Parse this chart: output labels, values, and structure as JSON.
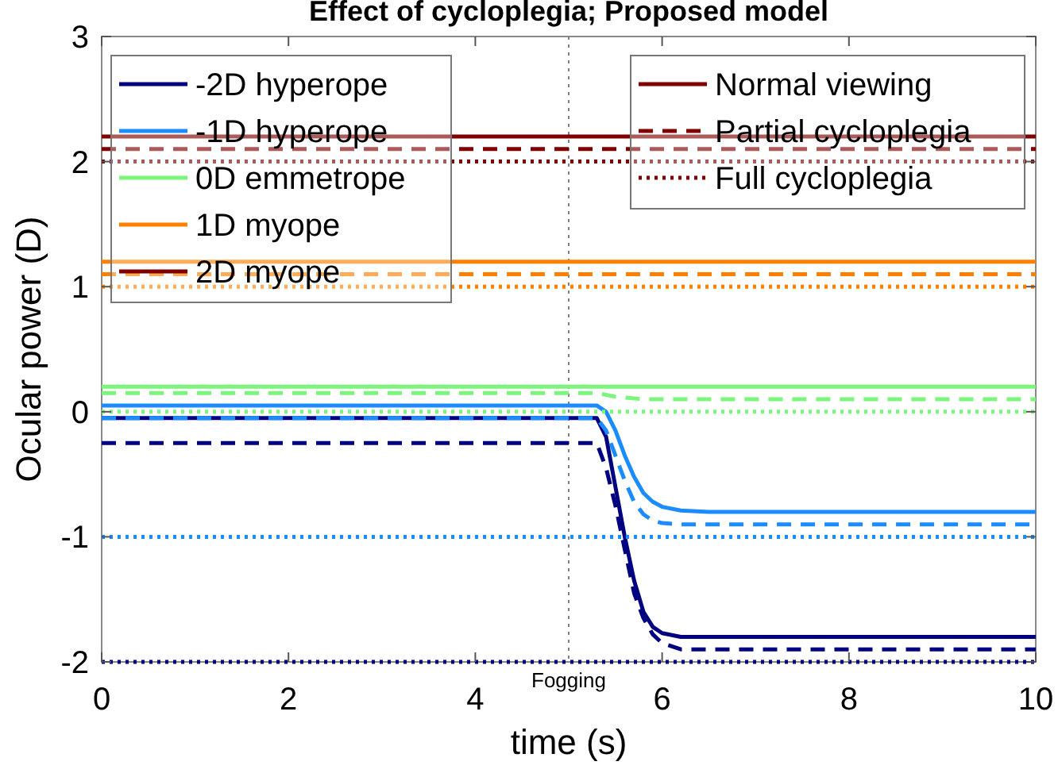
{
  "chart_data": {
    "type": "line",
    "title": "Effect of cycloplegia; Proposed model",
    "xlabel": "time (s)",
    "ylabel": "Ocular power (D)",
    "xlim": [
      0,
      10
    ],
    "xticks": [
      0,
      2,
      4,
      6,
      8,
      10
    ],
    "ylim": [
      -2,
      3
    ],
    "yticks": [
      -2,
      -1,
      0,
      1,
      2,
      3
    ],
    "grid": false,
    "legend": "top",
    "marker": "none",
    "annotations": [
      "Normal viewing"
    ],
    "ref_lines": [
      {
        "axis": "x",
        "value": 5,
        "label": "Fogging",
        "color": "#808080",
        "line_style": "dotted"
      }
    ],
    "series": [
      {
        "name": "-2D hyperope",
        "color": "#000080",
        "line_style": "solid",
        "x": [
          0,
          5.3,
          5.4,
          5.5,
          5.6,
          5.7,
          5.8,
          5.9,
          6.0,
          6.2,
          6.5,
          10
        ],
        "values": [
          -0.05,
          -0.05,
          -0.2,
          -0.6,
          -1.0,
          -1.35,
          -1.6,
          -1.72,
          -1.77,
          -1.8,
          -1.8,
          -1.8
        ]
      },
      {
        "color": "#000080",
        "line_style": "dashed",
        "x": [
          0,
          5.3,
          5.4,
          5.5,
          5.6,
          5.7,
          5.8,
          5.9,
          6.0,
          6.2,
          6.5,
          10
        ],
        "values": [
          -0.25,
          -0.25,
          -0.45,
          -0.75,
          -1.1,
          -1.45,
          -1.65,
          -1.78,
          -1.85,
          -1.9,
          -1.9,
          -1.9
        ]
      },
      {
        "color": "#000080",
        "line_style": "dotted",
        "x": [
          0,
          10
        ],
        "values": [
          -2,
          -2
        ]
      },
      {
        "name": "-1D hyperope",
        "color": "#1a8cff",
        "line_style": "solid",
        "x": [
          0,
          5.3,
          5.4,
          5.5,
          5.6,
          5.7,
          5.8,
          5.9,
          6.0,
          6.2,
          6.5,
          10
        ],
        "values": [
          0.05,
          0.05,
          0,
          -0.15,
          -0.35,
          -0.52,
          -0.65,
          -0.72,
          -0.76,
          -0.79,
          -0.8,
          -0.8
        ]
      },
      {
        "color": "#1a8cff",
        "line_style": "dashed",
        "x": [
          0,
          5.3,
          5.4,
          5.5,
          5.6,
          5.7,
          5.8,
          5.9,
          6.0,
          6.2,
          6.5,
          10
        ],
        "values": [
          -0.05,
          -0.05,
          -0.15,
          -0.35,
          -0.55,
          -0.72,
          -0.82,
          -0.87,
          -0.89,
          -0.9,
          -0.9,
          -0.9
        ]
      },
      {
        "color": "#1a8cff",
        "line_style": "dotted",
        "x": [
          0,
          10
        ],
        "values": [
          -1,
          -1
        ]
      },
      {
        "name": "0D emmetrope",
        "color": "#7cf57c",
        "line_style": "solid",
        "x": [
          0,
          10
        ],
        "values": [
          0.2,
          0.2
        ]
      },
      {
        "color": "#7cf57c",
        "line_style": "dashed",
        "x": [
          0,
          5.3,
          5.5,
          5.8,
          10
        ],
        "values": [
          0.15,
          0.15,
          0.12,
          0.1,
          0.1
        ]
      },
      {
        "color": "#7cf57c",
        "line_style": "dotted",
        "x": [
          0,
          10
        ],
        "values": [
          0,
          0
        ]
      },
      {
        "name": "1D myope",
        "color": "#ff8000",
        "line_style": "solid",
        "x": [
          0,
          10
        ],
        "values": [
          1.2,
          1.2
        ]
      },
      {
        "color": "#ff8000",
        "line_style": "dashed",
        "x": [
          0,
          10
        ],
        "values": [
          1.1,
          1.1
        ]
      },
      {
        "color": "#ff8000",
        "line_style": "dotted",
        "x": [
          0,
          10
        ],
        "values": [
          1,
          1
        ]
      },
      {
        "name": "2D myope",
        "color": "#800000",
        "line_style": "solid",
        "x": [
          0,
          10
        ],
        "values": [
          2.2,
          2.2
        ]
      },
      {
        "name": "Partial cycloplegia",
        "color": "#800000",
        "line_style": "dashed",
        "x": [
          0,
          10
        ],
        "values": [
          2.1,
          2.1
        ]
      },
      {
        "name": "Full cycloplegia",
        "color": "#800000",
        "line_style": "dotted",
        "x": [
          0,
          10
        ],
        "values": [
          2,
          2
        ]
      }
    ]
  }
}
